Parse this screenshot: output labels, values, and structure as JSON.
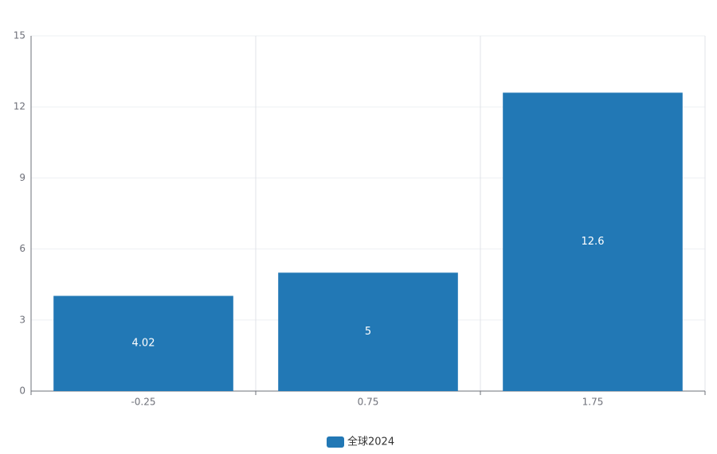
{
  "chart_data": {
    "type": "bar",
    "categories": [
      "-0.25",
      "0.75",
      "1.75"
    ],
    "series": [
      {
        "name": "全球2024",
        "color": "#2278b5",
        "values": [
          4.02,
          5,
          12.6
        ]
      }
    ],
    "ylim": [
      0,
      15
    ],
    "yticks": [
      0,
      3,
      6,
      9,
      12,
      15
    ],
    "grid": true,
    "legend": "bottom"
  }
}
